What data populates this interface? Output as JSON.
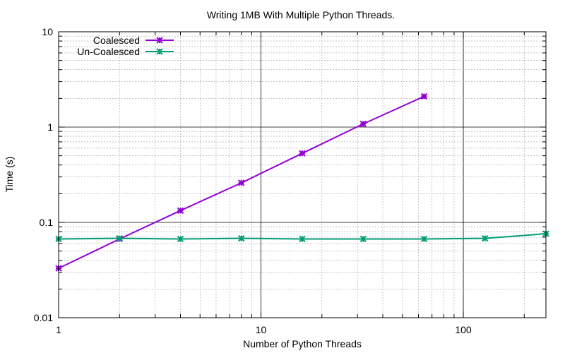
{
  "chart_data": {
    "type": "line",
    "title": "Writing 1MB With Multiple Python Threads.",
    "xlabel": "Number of Python Threads",
    "ylabel": "Time (s)",
    "xscale": "log",
    "yscale": "log",
    "xlim": [
      1,
      256
    ],
    "ylim": [
      0.01,
      10
    ],
    "x_ticks": [
      {
        "value": 1,
        "label": "1"
      },
      {
        "value": 10,
        "label": "10"
      },
      {
        "value": 100,
        "label": "100"
      }
    ],
    "y_ticks": [
      {
        "value": 0.01,
        "label": "0.01"
      },
      {
        "value": 0.1,
        "label": "0.1"
      },
      {
        "value": 1,
        "label": "1"
      },
      {
        "value": 10,
        "label": "10"
      }
    ],
    "grid": true,
    "legend_position": "top-left",
    "series": [
      {
        "name": "Coalesced",
        "color": "#9400d3",
        "points": [
          {
            "x": 1,
            "y": 0.033
          },
          {
            "x": 2,
            "y": 0.067
          },
          {
            "x": 4,
            "y": 0.133
          },
          {
            "x": 8,
            "y": 0.26
          },
          {
            "x": 16,
            "y": 0.53
          },
          {
            "x": 32,
            "y": 1.08
          },
          {
            "x": 64,
            "y": 2.1
          }
        ]
      },
      {
        "name": "Un-Coalesced",
        "color": "#009e73",
        "points": [
          {
            "x": 1,
            "y": 0.067
          },
          {
            "x": 2,
            "y": 0.068
          },
          {
            "x": 4,
            "y": 0.067
          },
          {
            "x": 8,
            "y": 0.068
          },
          {
            "x": 16,
            "y": 0.067
          },
          {
            "x": 32,
            "y": 0.067
          },
          {
            "x": 64,
            "y": 0.067
          },
          {
            "x": 128,
            "y": 0.068
          },
          {
            "x": 256,
            "y": 0.076
          }
        ]
      }
    ]
  }
}
